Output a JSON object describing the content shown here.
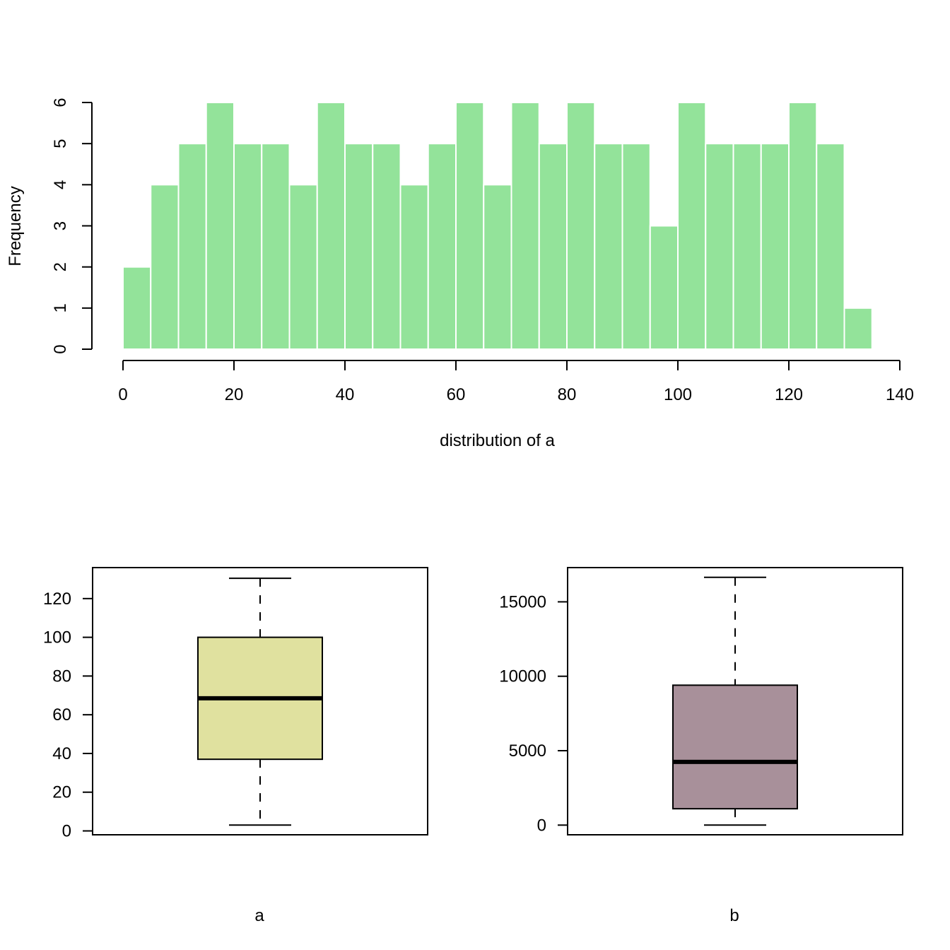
{
  "colors": {
    "hist_fill": "#93E39A",
    "hist_border": "#FFFFFF",
    "box_a_fill": "#E0E19F",
    "box_b_fill": "#A8909A",
    "axis": "#000000"
  },
  "chart_data": [
    {
      "type": "bar",
      "subtype": "histogram",
      "title": "",
      "xlabel": "distribution of a",
      "ylabel": "Frequency",
      "bin_width": 5,
      "bin_edges": [
        0,
        5,
        10,
        15,
        20,
        25,
        30,
        35,
        40,
        45,
        50,
        55,
        60,
        65,
        70,
        75,
        80,
        85,
        90,
        95,
        100,
        105,
        110,
        115,
        120,
        125,
        130,
        135
      ],
      "values": [
        2,
        4,
        5,
        6,
        5,
        5,
        4,
        6,
        5,
        5,
        4,
        5,
        6,
        4,
        6,
        5,
        6,
        5,
        5,
        3,
        6,
        5,
        5,
        5,
        6,
        5,
        1
      ],
      "xlim": [
        0,
        140
      ],
      "ylim": [
        0,
        6
      ],
      "xticks": [
        0,
        20,
        40,
        60,
        80,
        100,
        120,
        140
      ],
      "xtick_labels": [
        "0",
        "20",
        "40",
        "60",
        "80",
        "100",
        "120",
        "140"
      ],
      "yticks": [
        0,
        1,
        2,
        3,
        4,
        5,
        6
      ],
      "ytick_labels": [
        "0",
        "1",
        "2",
        "3",
        "4",
        "5",
        "6"
      ],
      "grid": false,
      "legend": "none"
    },
    {
      "type": "box",
      "xlabel": "a",
      "ylabel": "",
      "stats": {
        "min": 3,
        "q1": 37,
        "median": 68.5,
        "q3": 100,
        "max": 130.5
      },
      "ylim": [
        -2,
        136
      ],
      "yticks": [
        0,
        20,
        40,
        60,
        80,
        100,
        120
      ],
      "ytick_labels": [
        "0",
        "20",
        "40",
        "60",
        "80",
        "100",
        "120"
      ],
      "grid": false
    },
    {
      "type": "box",
      "xlabel": "b",
      "ylabel": "",
      "stats": {
        "min": 0,
        "q1": 1100,
        "median": 4250,
        "q3": 9400,
        "max": 16650
      },
      "ylim": [
        -650,
        17300
      ],
      "yticks": [
        0,
        5000,
        10000,
        15000
      ],
      "ytick_labels": [
        "0",
        "5000",
        "10000",
        "15000"
      ],
      "grid": false
    }
  ]
}
